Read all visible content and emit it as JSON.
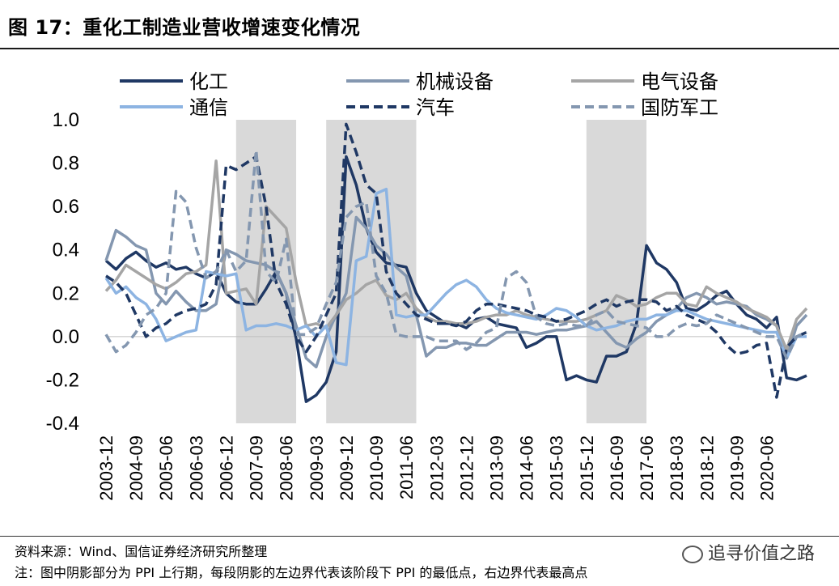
{
  "figure": {
    "title": "图 17：重化工制造业营收增速变化情况",
    "source": "资料来源：Wind、国信证券经济研究所整理",
    "note": "注：图中阴影部分为 PPI 上行期，每段阴影的左边界代表该阶段下 PPI 的最低点，右边界代表最高点",
    "watermark": "追寻价值之路",
    "watermark_icon": "wechat-icon"
  },
  "chart_data": {
    "type": "line",
    "title": "",
    "xlabel": "",
    "ylabel": "",
    "ylim": [
      -0.4,
      1.0
    ],
    "yticks": [
      "1.0",
      "0.8",
      "0.6",
      "0.4",
      "0.2",
      "0.0",
      "-0.2",
      "-0.4"
    ],
    "xlabels": [
      "2003-12",
      "2004-09",
      "2005-06",
      "2006-03",
      "2006-12",
      "2007-09",
      "2008-06",
      "2009-03",
      "2009-12",
      "2010-09",
      "2011-06",
      "2012-03",
      "2012-12",
      "2013-09",
      "2014-06",
      "2015-03",
      "2015-12",
      "2016-09",
      "2017-06",
      "2018-03",
      "2018-12",
      "2019-09",
      "2020-06"
    ],
    "x_step_quarters": 1,
    "grid": false,
    "legend_position": "top",
    "shaded_periods": [
      {
        "start": "2007-03",
        "end": "2008-09"
      },
      {
        "start": "2009-06",
        "end": "2011-09"
      },
      {
        "start": "2015-12",
        "end": "2017-06"
      }
    ],
    "shade_color": "#d9d9d9",
    "series": [
      {
        "name": "化工",
        "color": "#1f3864",
        "dash": "solid",
        "values": [
          0.35,
          0.31,
          0.36,
          0.39,
          0.35,
          0.32,
          0.34,
          0.31,
          0.32,
          0.29,
          0.27,
          0.3,
          0.2,
          0.16,
          0.15,
          0.15,
          0.22,
          0.3,
          0.2,
          -0.01,
          -0.3,
          -0.27,
          -0.21,
          -0.07,
          0.83,
          0.7,
          0.5,
          0.39,
          0.34,
          0.33,
          0.32,
          0.2,
          0.12,
          0.09,
          0.06,
          0.06,
          0.04,
          0.08,
          0.09,
          0.06,
          0.05,
          0.04,
          -0.05,
          -0.03,
          0.0,
          0.0,
          -0.2,
          -0.18,
          -0.2,
          -0.21,
          -0.09,
          -0.09,
          -0.07,
          0.06,
          0.42,
          0.34,
          0.31,
          0.25,
          0.13,
          0.12,
          0.15,
          0.19,
          0.21,
          0.15,
          0.1,
          0.08,
          0.04,
          0.09,
          -0.19,
          -0.2,
          -0.18
        ]
      },
      {
        "name": "机械设备",
        "color": "#8497b0",
        "dash": "solid",
        "values": [
          0.35,
          0.49,
          0.46,
          0.42,
          0.4,
          0.2,
          0.15,
          0.21,
          0.16,
          0.12,
          0.12,
          0.15,
          0.4,
          0.38,
          0.35,
          0.34,
          0.33,
          0.3,
          0.2,
          0.05,
          -0.1,
          -0.14,
          0.0,
          0.1,
          0.2,
          0.55,
          0.5,
          0.42,
          0.38,
          0.32,
          0.28,
          0.1,
          -0.09,
          -0.05,
          -0.05,
          -0.03,
          -0.03,
          -0.04,
          -0.04,
          -0.01,
          0.02,
          0.02,
          0.02,
          0.01,
          0.02,
          0.03,
          0.03,
          0.04,
          0.05,
          0.07,
          0.02,
          -0.03,
          -0.05,
          -0.01,
          0.02,
          0.07,
          0.1,
          0.13,
          0.18,
          0.2,
          0.18,
          0.15,
          0.16,
          0.15,
          0.14,
          0.1,
          0.08,
          0.05,
          -0.1,
          0.05,
          0.1
        ]
      },
      {
        "name": "电气设备",
        "color": "#a5a5a5",
        "dash": "solid",
        "values": [
          0.21,
          0.26,
          0.33,
          0.3,
          0.27,
          0.24,
          0.22,
          0.25,
          0.29,
          0.3,
          0.33,
          0.81,
          0.2,
          0.21,
          0.22,
          0.15,
          0.6,
          0.55,
          0.5,
          0.25,
          0.05,
          0.06,
          0.04,
          0.1,
          0.17,
          0.2,
          0.24,
          0.26,
          0.19,
          0.17,
          0.2,
          0.13,
          0.09,
          0.07,
          0.07,
          0.06,
          0.06,
          0.07,
          0.09,
          0.1,
          0.1,
          0.12,
          0.1,
          0.09,
          0.08,
          0.07,
          0.07,
          0.07,
          0.08,
          0.1,
          0.12,
          0.19,
          0.17,
          0.14,
          0.15,
          0.18,
          0.2,
          0.2,
          0.15,
          0.14,
          0.23,
          0.2,
          0.18,
          0.16,
          0.13,
          0.11,
          0.09,
          0.05,
          -0.06,
          0.08,
          0.13
        ]
      },
      {
        "name": "通信",
        "color": "#8db4e2",
        "dash": "solid",
        "values": [
          0.27,
          0.2,
          0.23,
          0.18,
          0.15,
          0.08,
          -0.02,
          0.0,
          0.02,
          0.03,
          0.3,
          0.29,
          0.28,
          0.29,
          0.03,
          0.05,
          0.05,
          0.06,
          0.05,
          0.03,
          0.05,
          0.0,
          0.05,
          -0.12,
          -0.13,
          0.35,
          0.37,
          0.66,
          0.68,
          0.1,
          0.09,
          0.1,
          0.1,
          0.15,
          0.2,
          0.24,
          0.26,
          0.23,
          0.17,
          0.13,
          0.11,
          0.1,
          0.09,
          0.08,
          0.1,
          0.13,
          0.12,
          0.09,
          0.05,
          0.03,
          0.04,
          0.05,
          0.07,
          0.08,
          0.08,
          0.1,
          0.1,
          0.12,
          0.12,
          0.1,
          0.08,
          0.07,
          0.06,
          0.05,
          0.04,
          0.03,
          0.02,
          0.02,
          -0.1,
          0.0,
          0.0
        ]
      },
      {
        "name": "汽车",
        "color": "#1f3864",
        "dash": "dashed",
        "values": [
          0.28,
          0.25,
          0.2,
          0.1,
          0.0,
          0.04,
          0.06,
          0.1,
          0.12,
          0.13,
          0.15,
          0.24,
          0.79,
          0.77,
          0.8,
          0.83,
          0.6,
          0.25,
          0.15,
          0.0,
          -0.07,
          0.0,
          0.1,
          0.2,
          0.98,
          0.85,
          0.7,
          0.66,
          0.3,
          0.2,
          0.15,
          0.1,
          0.08,
          0.06,
          0.06,
          0.05,
          0.07,
          0.12,
          0.15,
          0.15,
          0.14,
          0.13,
          0.12,
          0.1,
          0.09,
          0.07,
          0.08,
          0.1,
          0.12,
          0.15,
          0.17,
          0.14,
          0.16,
          0.17,
          0.17,
          0.16,
          0.12,
          0.14,
          0.1,
          0.08,
          0.06,
          0.02,
          -0.04,
          -0.08,
          -0.07,
          -0.04,
          -0.03,
          -0.28,
          -0.05,
          0.0,
          0.02
        ]
      },
      {
        "name": "国防军工",
        "color": "#8497b0",
        "dash": "dashed",
        "values": [
          0.01,
          -0.07,
          -0.04,
          0.02,
          0.1,
          0.13,
          0.2,
          0.67,
          0.62,
          0.41,
          0.27,
          0.3,
          0.4,
          0.3,
          0.35,
          0.86,
          0.3,
          0.25,
          0.45,
          0.01,
          0.01,
          0.04,
          0.15,
          0.25,
          0.55,
          0.6,
          0.62,
          0.28,
          0.2,
          0.01,
          0.0,
          0.0,
          0.0,
          -0.02,
          -0.02,
          -0.02,
          -0.06,
          -0.03,
          0.02,
          0.04,
          0.27,
          0.3,
          0.25,
          0.09,
          0.06,
          0.05,
          0.06,
          0.05,
          0.05,
          0.1,
          0.12,
          0.07,
          0.06,
          0.05,
          0.04,
          0.0,
          0.0,
          0.04,
          0.06,
          0.05,
          0.06,
          0.1,
          0.08,
          0.06,
          0.04,
          0.02,
          0.0,
          0.0,
          -0.1,
          0.0,
          0.02
        ]
      }
    ]
  }
}
